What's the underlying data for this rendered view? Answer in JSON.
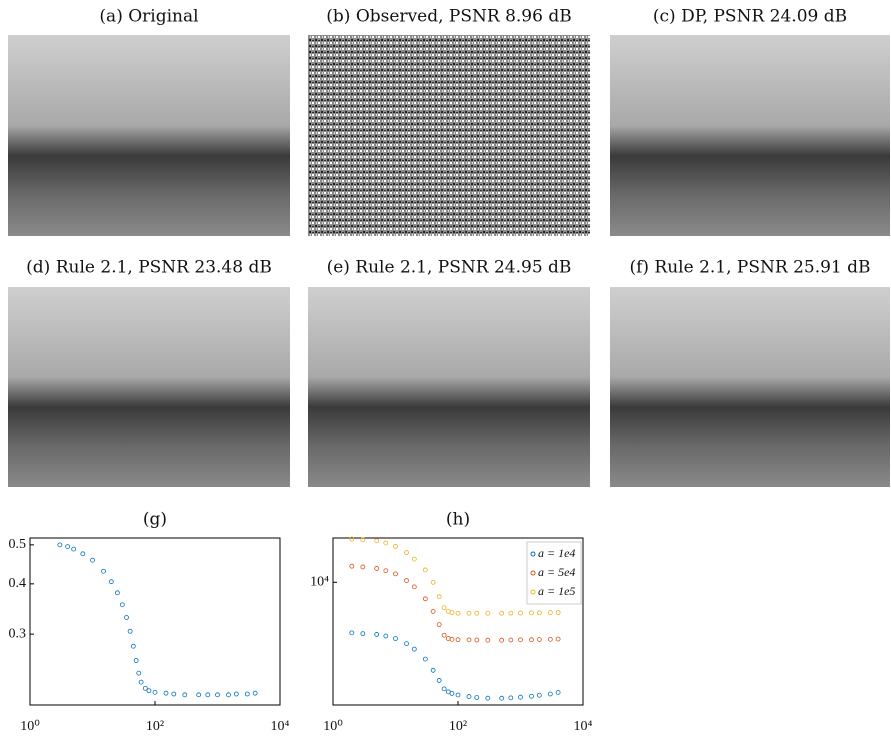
{
  "panels": [
    {
      "caption": "(a) Original"
    },
    {
      "caption": "(b) Observed, PSNR 8.96 dB"
    },
    {
      "caption": "(c) DP, PSNR 24.09 dB"
    },
    {
      "caption": "(d) Rule 2.1, PSNR 23.48 dB"
    },
    {
      "caption": "(e) Rule 2.1, PSNR 24.95 dB"
    },
    {
      "caption": "(f) Rule 2.1, PSNR 25.91 dB"
    }
  ],
  "chart_data": [
    {
      "type": "scatter",
      "title": "(g)",
      "xlog": true,
      "ylog": true,
      "x": [
        3,
        4,
        5,
        7,
        10,
        15,
        20,
        25,
        30,
        35,
        40,
        45,
        50,
        55,
        60,
        70,
        80,
        100,
        150,
        200,
        300,
        500,
        700,
        1000,
        1500,
        2000,
        3000,
        4000
      ],
      "series": [
        {
          "color": "#0072bd",
          "values": [
            0.5,
            0.495,
            0.488,
            0.475,
            0.458,
            0.43,
            0.405,
            0.38,
            0.355,
            0.33,
            0.305,
            0.28,
            0.258,
            0.24,
            0.228,
            0.22,
            0.217,
            0.215,
            0.214,
            0.213,
            0.212,
            0.212,
            0.212,
            0.212,
            0.212,
            0.213,
            0.213,
            0.214
          ]
        }
      ],
      "xlim": [
        1,
        10000
      ],
      "ylim": [
        0.2,
        0.52
      ],
      "xticks": [
        {
          "value": 1,
          "label": "10⁰"
        },
        {
          "value": 100,
          "label": "10²"
        },
        {
          "value": 10000,
          "label": "10⁴"
        }
      ],
      "yticks": [
        0.3,
        0.4,
        0.5
      ]
    },
    {
      "type": "scatter",
      "title": "(h)",
      "xlog": true,
      "ylog": true,
      "legend": "upper right",
      "x": [
        2,
        3,
        5,
        7,
        10,
        15,
        20,
        30,
        40,
        50,
        60,
        70,
        80,
        100,
        150,
        200,
        300,
        500,
        700,
        1000,
        1500,
        2000,
        3000,
        4000
      ],
      "series": [
        {
          "name": "a = 1e4",
          "color": "#0072bd",
          "values": [
            5650,
            5600,
            5550,
            5450,
            5300,
            5000,
            4700,
            4200,
            3700,
            3300,
            3000,
            2900,
            2850,
            2800,
            2750,
            2720,
            2700,
            2700,
            2710,
            2730,
            2760,
            2790,
            2830,
            2880
          ]
        },
        {
          "name": "a = 5e4",
          "color": "#d95319",
          "values": [
            12000,
            11900,
            11700,
            11400,
            11000,
            10200,
            9500,
            8300,
            7200,
            6200,
            5500,
            5300,
            5250,
            5230,
            5220,
            5210,
            5200,
            5200,
            5210,
            5220,
            5230,
            5240,
            5250,
            5270
          ]
        },
        {
          "name": "a = 1e5",
          "color": "#edb120",
          "values": [
            16300,
            16200,
            16000,
            15600,
            15000,
            14000,
            13000,
            11500,
            10000,
            8500,
            7500,
            7200,
            7100,
            7050,
            7050,
            7050,
            7050,
            7050,
            7060,
            7070,
            7080,
            7090,
            7100,
            7110
          ]
        }
      ],
      "xlim": [
        1,
        10000
      ],
      "ylim": [
        2500,
        16500
      ],
      "xticks": [
        {
          "value": 1,
          "label": "10⁰"
        },
        {
          "value": 100,
          "label": "10²"
        },
        {
          "value": 10000,
          "label": "10⁴"
        }
      ],
      "yticks": [
        {
          "value": 10000,
          "label": "10⁴"
        }
      ]
    }
  ]
}
